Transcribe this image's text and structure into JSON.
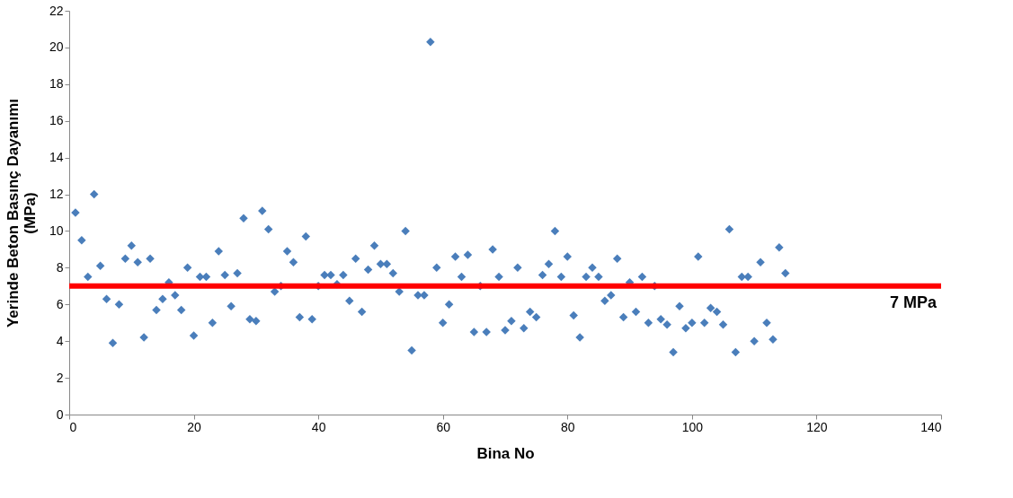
{
  "chart_data": {
    "type": "scatter",
    "xlabel": "Bina No",
    "ylabel": "Yerinde Beton Basınç Dayanımı\n(MPa)",
    "x": [
      1,
      2,
      3,
      4,
      5,
      6,
      7,
      8,
      9,
      10,
      11,
      12,
      13,
      14,
      15,
      16,
      17,
      18,
      19,
      20,
      21,
      22,
      23,
      24,
      25,
      26,
      27,
      28,
      29,
      30,
      31,
      32,
      33,
      34,
      35,
      36,
      37,
      38,
      39,
      40,
      41,
      42,
      43,
      44,
      45,
      46,
      47,
      48,
      49,
      50,
      51,
      52,
      53,
      54,
      55,
      56,
      57,
      58,
      59,
      60,
      61,
      62,
      63,
      64,
      65,
      66,
      67,
      68,
      69,
      70,
      71,
      72,
      73,
      74,
      75,
      76,
      77,
      78,
      79,
      80,
      81,
      82,
      83,
      84,
      85,
      86,
      87,
      88,
      89,
      90,
      91,
      92,
      93,
      94,
      95,
      96,
      97,
      98,
      99,
      100,
      101,
      102,
      103,
      104,
      105,
      106,
      107,
      108,
      109,
      110,
      111,
      112,
      113,
      114,
      115
    ],
    "series": [
      {
        "color": "#4a7ebb",
        "values": [
          11,
          9.5,
          7.5,
          12,
          8.1,
          6.3,
          3.9,
          6.0,
          8.5,
          9.2,
          8.3,
          4.2,
          8.5,
          5.7,
          6.3,
          7.2,
          6.5,
          5.7,
          8.0,
          4.3,
          7.5,
          7.5,
          5.0,
          8.9,
          7.6,
          5.9,
          7.7,
          10.7,
          5.2,
          5.1,
          11.1,
          10.1,
          6.7,
          7.0,
          8.9,
          8.3,
          5.3,
          9.7,
          5.2,
          7.0,
          7.6,
          7.6,
          7.1,
          7.6,
          6.2,
          8.5,
          5.6,
          7.9,
          9.2,
          8.2,
          8.2,
          7.7,
          6.7,
          10.0,
          3.5,
          6.5,
          6.5,
          20.3,
          8.0,
          5.0,
          6.0,
          8.6,
          7.5,
          8.7,
          4.5,
          7.0,
          4.5,
          9.0,
          7.5,
          4.6,
          5.1,
          8.0,
          4.7,
          5.6,
          5.3,
          7.6,
          8.2,
          10.0,
          7.5,
          8.6,
          5.4,
          4.2,
          7.5,
          8.0,
          7.5,
          6.2,
          6.5,
          8.5,
          5.3,
          7.2,
          5.6,
          7.5,
          5.0,
          7.0,
          5.2,
          4.9,
          3.4,
          5.9,
          4.7,
          5.0,
          8.6,
          5.0,
          5.8,
          5.6,
          4.9,
          10.1,
          3.4,
          7.5,
          7.5,
          4.0,
          8.3,
          5.0,
          4.1,
          9.1,
          7.7
        ]
      }
    ],
    "xlim": [
      0,
      140
    ],
    "xticks": [
      0,
      20,
      40,
      60,
      80,
      100,
      120,
      140
    ],
    "ylim": [
      0,
      22
    ],
    "yticks": [
      0,
      2,
      4,
      6,
      8,
      10,
      12,
      14,
      16,
      18,
      20,
      22
    ],
    "ref_lines": [
      {
        "axis": "y",
        "value": 7,
        "label": "7 MPa",
        "color": "#ff0000"
      }
    ],
    "marker": "diamond",
    "grid": false
  }
}
